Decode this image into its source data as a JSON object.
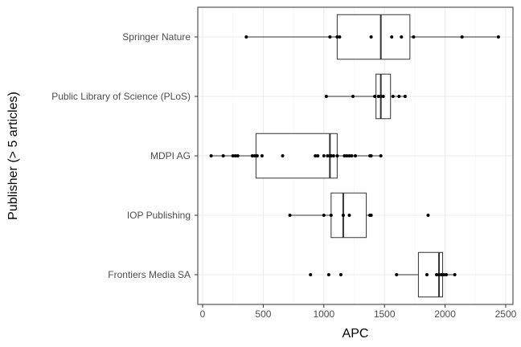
{
  "chart_data": {
    "type": "boxplot",
    "orientation": "horizontal",
    "xlabel": "APC",
    "ylabel": "Publisher (> 5 articles)",
    "xlim": [
      -40,
      2560
    ],
    "xticks": [
      0,
      500,
      1000,
      1500,
      2000,
      2500
    ],
    "xtick_labels": [
      "0",
      "500",
      "1000",
      "1500",
      "2000",
      "2500"
    ],
    "grid": true,
    "categories": [
      "Springer Nature",
      "Public Library of Science (PLoS)",
      "MDPI AG",
      "IOP Publishing",
      "Frontiers Media SA"
    ],
    "series": [
      {
        "category": "Springer Nature",
        "min": 360,
        "q1": 1110,
        "median": 1470,
        "q3": 1710,
        "max": 2440,
        "points": [
          360,
          1050,
          1110,
          1130,
          1390,
          1560,
          1640,
          1740,
          2140,
          2440
        ]
      },
      {
        "category": "Public Library of Science (PLoS)",
        "min": 1020,
        "q1": 1430,
        "median": 1470,
        "q3": 1550,
        "max": 1670,
        "points": [
          1020,
          1240,
          1420,
          1450,
          1470,
          1490,
          1570,
          1620,
          1670
        ]
      },
      {
        "category": "MDPI AG",
        "min": 70,
        "q1": 440,
        "median": 1050,
        "q3": 1110,
        "max": 1470,
        "points": [
          70,
          170,
          250,
          270,
          290,
          410,
          430,
          450,
          490,
          660,
          930,
          950,
          1000,
          1030,
          1050,
          1060,
          1080,
          1110,
          1170,
          1190,
          1210,
          1230,
          1260,
          1380,
          1390,
          1470
        ]
      },
      {
        "category": "IOP Publishing",
        "min": 720,
        "q1": 1060,
        "median": 1160,
        "q3": 1350,
        "max": 1390,
        "points": [
          720,
          1000,
          1060,
          1160,
          1210,
          1380,
          1390,
          1860
        ]
      },
      {
        "category": "Frontiers Media SA",
        "min": 1600,
        "q1": 1780,
        "median": 1950,
        "q3": 1980,
        "max": 2080,
        "points": [
          890,
          1040,
          1140,
          1600,
          1850,
          1930,
          1950,
          1970,
          1990,
          2010,
          2080
        ]
      }
    ]
  }
}
